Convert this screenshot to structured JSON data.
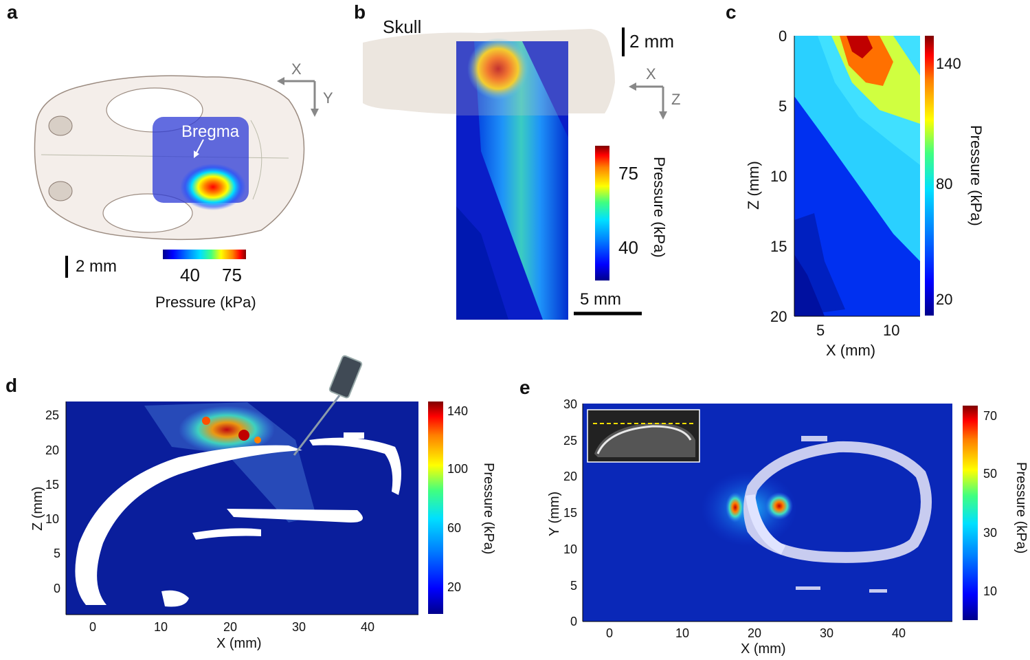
{
  "figure": {
    "panels": {
      "a": {
        "letter": "a",
        "bregma_label": "Bregma",
        "scale_bar": "2 mm",
        "axis_x": "X",
        "axis_y": "Y",
        "colorbar_ticks": [
          "40",
          "75"
        ],
        "colorbar_label": "Pressure (kPa)"
      },
      "b": {
        "letter": "b",
        "skull_label": "Skull",
        "scale_bar_top": "2 mm",
        "axis_x": "X",
        "axis_z": "Z",
        "colorbar_ticks": [
          "75",
          "40"
        ],
        "colorbar_label": "Pressure (kPa)",
        "scale_bar_bottom": "5 mm"
      },
      "c": {
        "letter": "c",
        "xlabel": "X (mm)",
        "ylabel": "Z (mm)",
        "xticks": [
          "5",
          "10"
        ],
        "yticks": [
          "0",
          "5",
          "10",
          "15",
          "20"
        ],
        "colorbar_ticks": [
          "140",
          "80",
          "20"
        ],
        "colorbar_label": "Pressure (kPa)"
      },
      "d": {
        "letter": "d",
        "xlabel": "X (mm)",
        "ylabel": "Z (mm)",
        "xticks": [
          "0",
          "10",
          "20",
          "30",
          "40"
        ],
        "yticks": [
          "25",
          "20",
          "15",
          "10",
          "5",
          "0"
        ],
        "colorbar_ticks": [
          "140",
          "100",
          "60",
          "20"
        ],
        "colorbar_label": "Pressure (kPa)"
      },
      "e": {
        "letter": "e",
        "xlabel": "X (mm)",
        "ylabel": "Y (mm)",
        "xticks": [
          "0",
          "10",
          "20",
          "30",
          "40"
        ],
        "yticks": [
          "30",
          "25",
          "20",
          "15",
          "10",
          "5",
          "0"
        ],
        "colorbar_ticks": [
          "70",
          "50",
          "30",
          "10"
        ],
        "colorbar_label": "Pressure (kPa)"
      }
    }
  },
  "chart_data": [
    {
      "type": "heatmap",
      "panel": "c",
      "title": "",
      "xlabel": "X (mm)",
      "ylabel": "Z (mm)",
      "xlim": [
        3,
        12
      ],
      "ylim": [
        20,
        0
      ],
      "colorbar": {
        "label": "Pressure (kPa)",
        "range": [
          15,
          160
        ],
        "ticks": [
          20,
          80,
          140
        ]
      },
      "peak": {
        "x": 7.5,
        "z": 0.5,
        "value": 160
      }
    },
    {
      "type": "heatmap",
      "panel": "d",
      "title": "",
      "xlabel": "X (mm)",
      "ylabel": "Z (mm)",
      "xlim": [
        -4,
        47
      ],
      "ylim": [
        -4,
        27
      ],
      "colorbar": {
        "label": "Pressure (kPa)",
        "range": [
          10,
          145
        ],
        "ticks": [
          20,
          60,
          100,
          140
        ]
      },
      "peak": {
        "x": 22,
        "z": 22,
        "value": 145
      }
    },
    {
      "type": "heatmap",
      "panel": "e",
      "title": "",
      "xlabel": "X (mm)",
      "ylabel": "Y (mm)",
      "xlim": [
        -4,
        47
      ],
      "ylim": [
        0,
        30
      ],
      "colorbar": {
        "label": "Pressure (kPa)",
        "range": [
          5,
          75
        ],
        "ticks": [
          10,
          30,
          50,
          70
        ]
      },
      "peak": {
        "x": 23.5,
        "y": 16,
        "value": 75
      }
    }
  ]
}
